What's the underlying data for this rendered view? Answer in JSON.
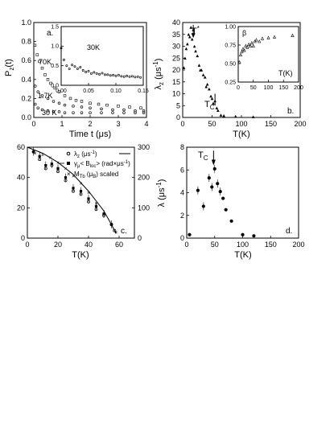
{
  "chart_data": [
    {
      "id": "a",
      "type": "scatter",
      "panel_label": "a.",
      "ylabel": "P_z(t)",
      "xlabel": "Time t (μs)",
      "xlim": [
        0,
        4
      ],
      "ylim": [
        0,
        1.0
      ],
      "xticks": [
        "0",
        "1",
        "2",
        "3",
        "4"
      ],
      "yticks": [
        "0.0",
        "0.2",
        "0.4",
        "0.6",
        "0.8",
        "1.0"
      ],
      "series_labels": [
        "70K",
        "1.7K",
        "30 K"
      ],
      "series": [
        {
          "name": "70K",
          "x": [
            0.04,
            0.12,
            0.2,
            0.3,
            0.4,
            0.5,
            0.6,
            0.75,
            0.9,
            1.1,
            1.3,
            1.5,
            1.7,
            2.0,
            2.3,
            2.6,
            3.0,
            3.4,
            3.8
          ],
          "y": [
            0.76,
            0.66,
            0.59,
            0.52,
            0.45,
            0.4,
            0.36,
            0.31,
            0.27,
            0.23,
            0.2,
            0.18,
            0.17,
            0.15,
            0.14,
            0.13,
            0.12,
            0.11,
            0.1
          ]
        },
        {
          "name": "1.7K",
          "x": [
            0.05,
            0.15,
            0.3,
            0.5,
            0.7,
            0.9,
            1.1,
            1.4,
            1.7,
            2.0,
            2.4,
            2.8,
            3.2,
            3.6,
            3.9
          ],
          "y": [
            0.33,
            0.27,
            0.23,
            0.2,
            0.17,
            0.15,
            0.13,
            0.12,
            0.11,
            0.1,
            0.09,
            0.08,
            0.08,
            0.07,
            0.07
          ]
        },
        {
          "name": "30 K",
          "x": [
            0.05,
            0.15,
            0.3,
            0.5,
            0.7,
            0.9,
            1.1,
            1.4,
            1.7,
            2.0,
            2.4,
            2.8,
            3.2,
            3.6,
            3.9
          ],
          "y": [
            0.14,
            0.1,
            0.08,
            0.07,
            0.06,
            0.06,
            0.05,
            0.05,
            0.05,
            0.05,
            0.05,
            0.05,
            0.05,
            0.05,
            0.05
          ]
        }
      ],
      "inset": {
        "label": "30K",
        "xlim": [
          0,
          0.15
        ],
        "ylim": [
          0,
          1.5
        ],
        "xticks": [
          "0.00",
          "0.05",
          "0.10",
          "0.15"
        ],
        "yticks": [
          "0.0",
          "0.5",
          "1.0",
          "1.5"
        ],
        "x": [
          0.0,
          0.005,
          0.01,
          0.015,
          0.02,
          0.025,
          0.03,
          0.035,
          0.04,
          0.045,
          0.05,
          0.055,
          0.06,
          0.065,
          0.07,
          0.075,
          0.08,
          0.085,
          0.09,
          0.095,
          0.1,
          0.105,
          0.11,
          0.115,
          0.12,
          0.125,
          0.13,
          0.135,
          0.14,
          0.145
        ],
        "y": [
          0.95,
          0.65,
          0.5,
          0.42,
          0.52,
          0.48,
          0.42,
          0.46,
          0.38,
          0.34,
          0.36,
          0.3,
          0.33,
          0.3,
          0.28,
          0.31,
          0.27,
          0.27,
          0.25,
          0.26,
          0.24,
          0.26,
          0.23,
          0.22,
          0.24,
          0.22,
          0.23,
          0.21,
          0.22,
          0.2
        ]
      }
    },
    {
      "id": "b",
      "type": "scatter",
      "panel_label": "b.",
      "ylabel": "λ_z (μs⁻¹)",
      "xlabel": "T(K)",
      "xlim": [
        0,
        200
      ],
      "ylim": [
        0,
        40
      ],
      "xticks": [
        "0",
        "50",
        "100",
        "150",
        "200"
      ],
      "yticks": [
        "0",
        "5",
        "10",
        "15",
        "20",
        "25",
        "30",
        "35",
        "40"
      ],
      "annotations": [
        "T*",
        "T_C"
      ],
      "series": [
        {
          "name": "",
          "x": [
            2,
            4,
            6,
            8,
            10,
            12,
            14,
            16,
            18,
            20,
            22,
            25,
            28,
            30,
            32,
            35,
            38,
            40,
            42,
            45,
            48,
            50,
            52,
            55,
            58,
            60,
            65,
            70,
            90,
            120
          ],
          "y": [
            21,
            25,
            29,
            31,
            35,
            34,
            38,
            33,
            37,
            30,
            28,
            26,
            22,
            20,
            20,
            18,
            17,
            13,
            14,
            12,
            9,
            8,
            6,
            7,
            4,
            3,
            1,
            0.8,
            0.5,
            0.3
          ]
        }
      ],
      "inset": {
        "label": "T(K)",
        "ylabel": "β",
        "xlim": [
          0,
          200
        ],
        "ylim": [
          0.25,
          1.0
        ],
        "xticks": [
          "0",
          "50",
          "100",
          "150",
          "200"
        ],
        "yticks": [
          "0.25",
          "0.50",
          "0.75",
          "1.00"
        ],
        "x": [
          4,
          8,
          12,
          16,
          20,
          25,
          30,
          35,
          40,
          45,
          50,
          55,
          60,
          70,
          80,
          100,
          120,
          180
        ],
        "y": [
          0.52,
          0.62,
          0.66,
          0.7,
          0.68,
          0.74,
          0.72,
          0.76,
          0.74,
          0.78,
          0.74,
          0.8,
          0.82,
          0.8,
          0.84,
          0.85,
          0.86,
          0.88
        ]
      }
    },
    {
      "id": "c",
      "type": "scatter",
      "panel_label": "c.",
      "xlabel": "T(K)",
      "xlim": [
        0,
        70
      ],
      "ylim": [
        0,
        60
      ],
      "y2lim": [
        0,
        300
      ],
      "xticks": [
        "0",
        "20",
        "40",
        "60"
      ],
      "yticks": [
        "0",
        "20",
        "40",
        "60"
      ],
      "y2ticks": [
        "0",
        "100",
        "200",
        "300"
      ],
      "legend": [
        "λ_z (μs⁻¹)",
        "γ_μ< B_loc > (rad×μs⁻¹)",
        "M_Tb (μ_B) scaled"
      ],
      "series": [
        {
          "name": "λ_z (μs⁻¹)",
          "x": [
            4,
            8,
            12,
            16,
            20,
            25,
            30,
            35,
            40,
            45,
            50,
            55,
            57
          ],
          "y": [
            57,
            52,
            46,
            48,
            44,
            38,
            31,
            29,
            24,
            19,
            15,
            9,
            5
          ]
        },
        {
          "name": "γ_μ< B_loc > (rad×μs⁻¹)",
          "x": [
            4,
            8,
            12,
            16,
            20,
            25,
            30,
            35,
            40,
            45,
            50,
            55
          ],
          "y": [
            57,
            54,
            48,
            49,
            46,
            40,
            33,
            31,
            26,
            21,
            16,
            9
          ]
        },
        {
          "name": "M_Tb (μ_B) scaled",
          "x": [
            5,
            10,
            15,
            20,
            25,
            30,
            35,
            40,
            45,
            50,
            55,
            58
          ],
          "y": [
            56,
            55,
            53,
            50,
            46,
            41,
            36,
            30,
            23,
            16,
            9,
            4
          ]
        }
      ],
      "curve": {
        "x": [
          0,
          10,
          20,
          30,
          40,
          50,
          55,
          58
        ],
        "y": [
          60,
          56,
          50,
          42,
          31,
          18,
          9,
          3
        ]
      }
    },
    {
      "id": "d",
      "type": "scatter",
      "panel_label": "d.",
      "ylabel": "λ (μs⁻¹)",
      "xlabel": "T(K)",
      "xlim": [
        0,
        200
      ],
      "ylim": [
        0,
        8
      ],
      "xticks": [
        "0",
        "25",
        "50",
        "75",
        "100",
        "125",
        "150",
        "175",
        "200"
      ],
      "yticks": [
        "0",
        "2",
        "4",
        "6",
        "8"
      ],
      "annotations": [
        "T_C"
      ],
      "series": [
        {
          "name": "",
          "x": [
            5,
            20,
            30,
            40,
            45,
            50,
            55,
            60,
            65,
            70,
            80,
            100,
            120
          ],
          "y": [
            0.3,
            4.2,
            2.8,
            5.3,
            4.5,
            6.1,
            4.8,
            4.1,
            3.5,
            2.5,
            1.5,
            0.3,
            0.2
          ]
        }
      ]
    }
  ]
}
